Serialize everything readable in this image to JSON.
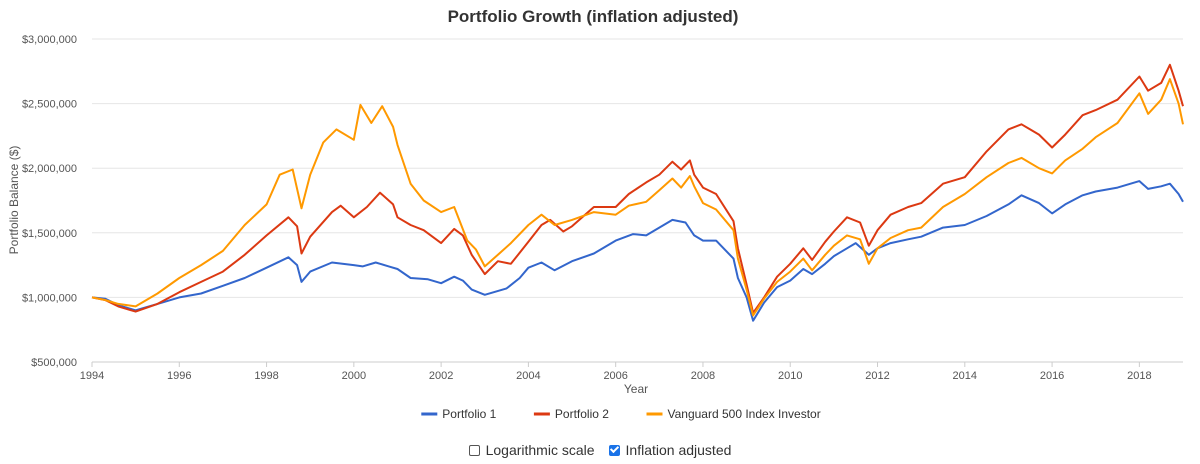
{
  "chart_data": {
    "type": "line",
    "title": "Portfolio Growth (inflation adjusted)",
    "xlabel": "Year",
    "ylabel": "Portfolio Balance ($)",
    "xlim": [
      1994,
      2019
    ],
    "ylim": [
      500000,
      3000000
    ],
    "x_ticks": [
      1994,
      1996,
      1998,
      2000,
      2002,
      2004,
      2006,
      2008,
      2010,
      2012,
      2014,
      2016,
      2018
    ],
    "y_ticks": [
      500000,
      1000000,
      1500000,
      2000000,
      2500000,
      3000000
    ],
    "y_tick_labels": [
      "$500,000",
      "$1,000,000",
      "$1,500,000",
      "$2,000,000",
      "$2,500,000",
      "$3,000,000"
    ],
    "grid": true,
    "legend_position": "bottom",
    "series": [
      {
        "name": "Portfolio 1",
        "color": "#3366cc",
        "points": [
          [
            1994,
            1000000
          ],
          [
            1994.3,
            990000
          ],
          [
            1994.6,
            940000
          ],
          [
            1995.0,
            900000
          ],
          [
            1995.5,
            950000
          ],
          [
            1996.0,
            1000000
          ],
          [
            1996.5,
            1030000
          ],
          [
            1997.0,
            1090000
          ],
          [
            1997.5,
            1150000
          ],
          [
            1998.0,
            1230000
          ],
          [
            1998.5,
            1310000
          ],
          [
            1998.7,
            1250000
          ],
          [
            1998.8,
            1120000
          ],
          [
            1999.0,
            1200000
          ],
          [
            1999.5,
            1270000
          ],
          [
            2000.0,
            1250000
          ],
          [
            2000.2,
            1240000
          ],
          [
            2000.5,
            1270000
          ],
          [
            2000.8,
            1240000
          ],
          [
            2001.0,
            1220000
          ],
          [
            2001.3,
            1150000
          ],
          [
            2001.7,
            1140000
          ],
          [
            2002.0,
            1110000
          ],
          [
            2002.3,
            1160000
          ],
          [
            2002.5,
            1130000
          ],
          [
            2002.7,
            1060000
          ],
          [
            2003.0,
            1020000
          ],
          [
            2003.5,
            1070000
          ],
          [
            2003.8,
            1150000
          ],
          [
            2004.0,
            1230000
          ],
          [
            2004.3,
            1270000
          ],
          [
            2004.6,
            1210000
          ],
          [
            2005.0,
            1280000
          ],
          [
            2005.5,
            1340000
          ],
          [
            2006.0,
            1440000
          ],
          [
            2006.4,
            1490000
          ],
          [
            2006.7,
            1480000
          ],
          [
            2007.0,
            1540000
          ],
          [
            2007.3,
            1600000
          ],
          [
            2007.6,
            1580000
          ],
          [
            2007.8,
            1480000
          ],
          [
            2008.0,
            1440000
          ],
          [
            2008.3,
            1440000
          ],
          [
            2008.7,
            1300000
          ],
          [
            2008.8,
            1150000
          ],
          [
            2009.0,
            1000000
          ],
          [
            2009.15,
            820000
          ],
          [
            2009.4,
            960000
          ],
          [
            2009.7,
            1080000
          ],
          [
            2010.0,
            1130000
          ],
          [
            2010.3,
            1220000
          ],
          [
            2010.5,
            1180000
          ],
          [
            2010.8,
            1260000
          ],
          [
            2011.0,
            1320000
          ],
          [
            2011.3,
            1380000
          ],
          [
            2011.5,
            1420000
          ],
          [
            2011.8,
            1330000
          ],
          [
            2012.0,
            1380000
          ],
          [
            2012.3,
            1420000
          ],
          [
            2012.7,
            1450000
          ],
          [
            2013.0,
            1470000
          ],
          [
            2013.5,
            1540000
          ],
          [
            2014.0,
            1560000
          ],
          [
            2014.5,
            1630000
          ],
          [
            2015.0,
            1720000
          ],
          [
            2015.3,
            1790000
          ],
          [
            2015.7,
            1730000
          ],
          [
            2016.0,
            1650000
          ],
          [
            2016.3,
            1720000
          ],
          [
            2016.7,
            1790000
          ],
          [
            2017.0,
            1820000
          ],
          [
            2017.5,
            1850000
          ],
          [
            2018.0,
            1900000
          ],
          [
            2018.2,
            1840000
          ],
          [
            2018.5,
            1860000
          ],
          [
            2018.7,
            1880000
          ],
          [
            2018.9,
            1800000
          ],
          [
            2019.0,
            1740000
          ]
        ]
      },
      {
        "name": "Portfolio 2",
        "color": "#dc3912",
        "points": [
          [
            1994,
            1000000
          ],
          [
            1994.3,
            980000
          ],
          [
            1994.6,
            930000
          ],
          [
            1995.0,
            890000
          ],
          [
            1995.5,
            950000
          ],
          [
            1996.0,
            1040000
          ],
          [
            1996.5,
            1120000
          ],
          [
            1997.0,
            1200000
          ],
          [
            1997.5,
            1330000
          ],
          [
            1998.0,
            1480000
          ],
          [
            1998.5,
            1620000
          ],
          [
            1998.7,
            1550000
          ],
          [
            1998.8,
            1340000
          ],
          [
            1999.0,
            1470000
          ],
          [
            1999.5,
            1660000
          ],
          [
            1999.7,
            1710000
          ],
          [
            2000.0,
            1620000
          ],
          [
            2000.3,
            1700000
          ],
          [
            2000.6,
            1810000
          ],
          [
            2000.9,
            1720000
          ],
          [
            2001.0,
            1620000
          ],
          [
            2001.3,
            1560000
          ],
          [
            2001.6,
            1520000
          ],
          [
            2002.0,
            1420000
          ],
          [
            2002.3,
            1530000
          ],
          [
            2002.5,
            1480000
          ],
          [
            2002.7,
            1330000
          ],
          [
            2003.0,
            1180000
          ],
          [
            2003.3,
            1280000
          ],
          [
            2003.6,
            1260000
          ],
          [
            2004.0,
            1430000
          ],
          [
            2004.3,
            1560000
          ],
          [
            2004.5,
            1600000
          ],
          [
            2004.8,
            1510000
          ],
          [
            2005.0,
            1550000
          ],
          [
            2005.5,
            1700000
          ],
          [
            2006.0,
            1700000
          ],
          [
            2006.3,
            1800000
          ],
          [
            2006.7,
            1890000
          ],
          [
            2007.0,
            1950000
          ],
          [
            2007.3,
            2050000
          ],
          [
            2007.5,
            1990000
          ],
          [
            2007.7,
            2060000
          ],
          [
            2007.8,
            1950000
          ],
          [
            2008.0,
            1850000
          ],
          [
            2008.3,
            1800000
          ],
          [
            2008.7,
            1590000
          ],
          [
            2008.8,
            1380000
          ],
          [
            2009.0,
            1100000
          ],
          [
            2009.15,
            880000
          ],
          [
            2009.4,
            1000000
          ],
          [
            2009.7,
            1160000
          ],
          [
            2010.0,
            1260000
          ],
          [
            2010.3,
            1380000
          ],
          [
            2010.5,
            1290000
          ],
          [
            2010.8,
            1430000
          ],
          [
            2011.0,
            1510000
          ],
          [
            2011.3,
            1620000
          ],
          [
            2011.6,
            1580000
          ],
          [
            2011.8,
            1400000
          ],
          [
            2012.0,
            1520000
          ],
          [
            2012.3,
            1640000
          ],
          [
            2012.7,
            1700000
          ],
          [
            2013.0,
            1730000
          ],
          [
            2013.5,
            1880000
          ],
          [
            2014.0,
            1930000
          ],
          [
            2014.5,
            2130000
          ],
          [
            2015.0,
            2300000
          ],
          [
            2015.3,
            2340000
          ],
          [
            2015.7,
            2260000
          ],
          [
            2016.0,
            2160000
          ],
          [
            2016.3,
            2260000
          ],
          [
            2016.7,
            2410000
          ],
          [
            2017.0,
            2450000
          ],
          [
            2017.5,
            2530000
          ],
          [
            2018.0,
            2710000
          ],
          [
            2018.2,
            2600000
          ],
          [
            2018.5,
            2660000
          ],
          [
            2018.7,
            2800000
          ],
          [
            2018.9,
            2600000
          ],
          [
            2019.0,
            2480000
          ]
        ]
      },
      {
        "name": "Vanguard 500 Index Investor",
        "color": "#ff9900",
        "points": [
          [
            1994,
            1000000
          ],
          [
            1994.3,
            980000
          ],
          [
            1994.6,
            950000
          ],
          [
            1995.0,
            930000
          ],
          [
            1995.5,
            1030000
          ],
          [
            1996.0,
            1150000
          ],
          [
            1996.5,
            1250000
          ],
          [
            1997.0,
            1360000
          ],
          [
            1997.5,
            1560000
          ],
          [
            1998.0,
            1720000
          ],
          [
            1998.3,
            1950000
          ],
          [
            1998.6,
            1990000
          ],
          [
            1998.8,
            1690000
          ],
          [
            1999.0,
            1950000
          ],
          [
            1999.3,
            2200000
          ],
          [
            1999.6,
            2300000
          ],
          [
            2000.0,
            2220000
          ],
          [
            2000.15,
            2490000
          ],
          [
            2000.4,
            2350000
          ],
          [
            2000.65,
            2480000
          ],
          [
            2000.9,
            2320000
          ],
          [
            2001.0,
            2180000
          ],
          [
            2001.3,
            1880000
          ],
          [
            2001.6,
            1750000
          ],
          [
            2002.0,
            1660000
          ],
          [
            2002.3,
            1700000
          ],
          [
            2002.6,
            1440000
          ],
          [
            2002.8,
            1370000
          ],
          [
            2003.0,
            1240000
          ],
          [
            2003.3,
            1330000
          ],
          [
            2003.6,
            1420000
          ],
          [
            2004.0,
            1560000
          ],
          [
            2004.3,
            1640000
          ],
          [
            2004.6,
            1560000
          ],
          [
            2005.0,
            1600000
          ],
          [
            2005.5,
            1660000
          ],
          [
            2006.0,
            1640000
          ],
          [
            2006.3,
            1710000
          ],
          [
            2006.7,
            1740000
          ],
          [
            2007.0,
            1830000
          ],
          [
            2007.3,
            1920000
          ],
          [
            2007.5,
            1850000
          ],
          [
            2007.7,
            1940000
          ],
          [
            2007.8,
            1860000
          ],
          [
            2008.0,
            1730000
          ],
          [
            2008.3,
            1680000
          ],
          [
            2008.7,
            1520000
          ],
          [
            2008.8,
            1300000
          ],
          [
            2009.0,
            1060000
          ],
          [
            2009.15,
            860000
          ],
          [
            2009.4,
            990000
          ],
          [
            2009.7,
            1120000
          ],
          [
            2010.0,
            1200000
          ],
          [
            2010.3,
            1300000
          ],
          [
            2010.5,
            1210000
          ],
          [
            2010.8,
            1330000
          ],
          [
            2011.0,
            1400000
          ],
          [
            2011.3,
            1480000
          ],
          [
            2011.6,
            1450000
          ],
          [
            2011.8,
            1260000
          ],
          [
            2012.0,
            1380000
          ],
          [
            2012.3,
            1460000
          ],
          [
            2012.7,
            1520000
          ],
          [
            2013.0,
            1540000
          ],
          [
            2013.5,
            1700000
          ],
          [
            2014.0,
            1800000
          ],
          [
            2014.5,
            1930000
          ],
          [
            2015.0,
            2040000
          ],
          [
            2015.3,
            2080000
          ],
          [
            2015.7,
            2000000
          ],
          [
            2016.0,
            1960000
          ],
          [
            2016.3,
            2060000
          ],
          [
            2016.7,
            2150000
          ],
          [
            2017.0,
            2240000
          ],
          [
            2017.5,
            2350000
          ],
          [
            2018.0,
            2580000
          ],
          [
            2018.2,
            2420000
          ],
          [
            2018.5,
            2530000
          ],
          [
            2018.7,
            2690000
          ],
          [
            2018.9,
            2500000
          ],
          [
            2019.0,
            2340000
          ]
        ]
      }
    ]
  },
  "controls": {
    "log_scale": {
      "label": "Logarithmic scale",
      "checked": false
    },
    "inflation": {
      "label": "Inflation adjusted",
      "checked": true
    }
  }
}
